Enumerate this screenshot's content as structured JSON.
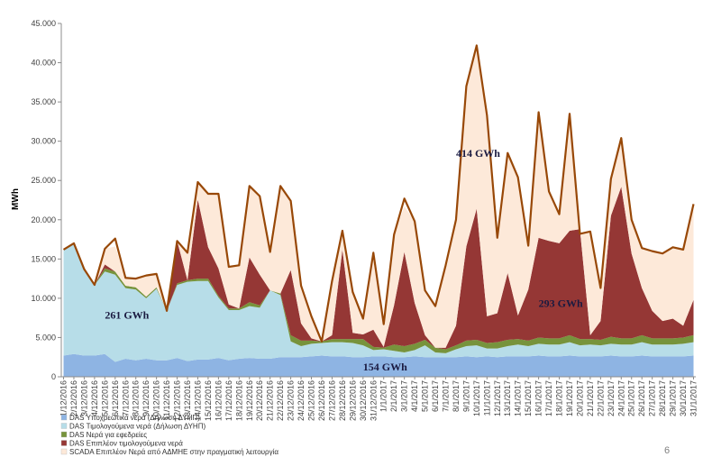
{
  "page_number": "6",
  "chart_data": {
    "type": "area",
    "stacked": true,
    "ylabel": "MWh",
    "ylim": [
      0,
      45000
    ],
    "yticks": [
      "0",
      "5.000",
      "10.000",
      "15.000",
      "20.000",
      "25.000",
      "30.000",
      "35.000",
      "40.000",
      "45.000"
    ],
    "grid": false,
    "legend_position": "bottom-left",
    "x": [
      "1/12/2016",
      "2/12/2016",
      "3/12/2016",
      "4/12/2016",
      "5/12/2016",
      "6/12/2016",
      "7/12/2016",
      "8/12/2016",
      "9/12/2016",
      "10/12/2016",
      "11/12/2016",
      "12/12/2016",
      "13/12/2016",
      "14/12/2016",
      "15/12/2016",
      "16/12/2016",
      "17/12/2016",
      "18/12/2016",
      "19/12/2016",
      "20/12/2016",
      "21/12/2016",
      "22/12/2016",
      "23/12/2016",
      "24/12/2016",
      "25/12/2016",
      "26/12/2016",
      "27/12/2016",
      "28/12/2016",
      "29/12/2016",
      "30/12/2016",
      "31/12/2016",
      "1/1/2017",
      "2/1/2017",
      "3/1/2017",
      "4/1/2017",
      "5/1/2017",
      "6/1/2017",
      "7/1/2017",
      "8/1/2017",
      "9/1/2017",
      "10/1/2017",
      "11/1/2017",
      "12/1/2017",
      "13/1/2017",
      "14/1/2017",
      "15/1/2017",
      "16/1/2017",
      "17/1/2017",
      "18/1/2017",
      "19/1/2017",
      "20/1/2017",
      "21/1/2017",
      "22/1/2017",
      "23/1/2017",
      "24/1/2017",
      "25/1/2017",
      "26/1/2017",
      "27/1/2017",
      "28/1/2017",
      "29/1/2017",
      "30/1/2017",
      "31/1/2017"
    ],
    "series": [
      {
        "name": "DAS Υποχρεωτικά νερά (Δήλωση ΔΥΗΠ)",
        "color": "#8eb4e3",
        "values": [
          2700,
          2900,
          2700,
          2700,
          2900,
          1900,
          2300,
          2100,
          2300,
          2100,
          2100,
          2400,
          2000,
          2200,
          2200,
          2400,
          2100,
          2300,
          2400,
          2300,
          2300,
          2500,
          2500,
          2500,
          2600,
          2700,
          2600,
          2600,
          2500,
          2500,
          2600,
          2600,
          2500,
          2500,
          2600,
          2500,
          2500,
          2500,
          2500,
          2600,
          2500,
          2600,
          2500,
          2600,
          2600,
          2600,
          2700,
          2600,
          2600,
          2700,
          2600,
          2600,
          2600,
          2700,
          2600,
          2600,
          2700,
          2600,
          2600,
          2600,
          2600,
          2700
        ]
      },
      {
        "name": "DAS Τιμολογούμενα νερά (Δήλωση ΔΥΗΠ)",
        "color": "#b7dde8",
        "values": [
          13500,
          14100,
          11000,
          9000,
          10500,
          11100,
          9000,
          9000,
          7700,
          9100,
          6300,
          9300,
          10100,
          10000,
          10000,
          7700,
          6400,
          6200,
          6600,
          6500,
          8700,
          7900,
          2000,
          1400,
          1600,
          1600,
          1800,
          1800,
          1800,
          1500,
          800,
          900,
          800,
          600,
          800,
          1500,
          600,
          500,
          1000,
          1300,
          1500,
          1000,
          1100,
          1300,
          1500,
          1300,
          1500,
          1500,
          1500,
          1700,
          1400,
          1500,
          1400,
          1500,
          1500,
          1500,
          1700,
          1500,
          1500,
          1500,
          1600,
          1700
        ]
      },
      {
        "name": "DAS Νερά για εφεδρείες",
        "color": "#77933c",
        "values": [
          0,
          0,
          0,
          0,
          400,
          400,
          300,
          300,
          200,
          200,
          0,
          200,
          200,
          300,
          300,
          200,
          200,
          200,
          500,
          300,
          0,
          200,
          800,
          700,
          400,
          200,
          400,
          400,
          500,
          800,
          400,
          200,
          800,
          800,
          800,
          700,
          600,
          500,
          500,
          700,
          700,
          700,
          800,
          800,
          700,
          700,
          800,
          800,
          800,
          900,
          800,
          700,
          700,
          900,
          800,
          800,
          900,
          800,
          800,
          800,
          800,
          900
        ]
      },
      {
        "name": "DAS Επιπλέον τιμολογούμενα νερά",
        "color": "#953735",
        "values": [
          0,
          0,
          0,
          0,
          500,
          0,
          0,
          0,
          0,
          0,
          0,
          5400,
          0,
          10100,
          4000,
          3500,
          500,
          0,
          5700,
          3900,
          0,
          0,
          8300,
          2200,
          300,
          0,
          500,
          11400,
          800,
          600,
          2200,
          100,
          5000,
          12000,
          5200,
          600,
          0,
          200,
          2500,
          12000,
          16700,
          3400,
          3700,
          8500,
          3000,
          6500,
          12700,
          12400,
          12100,
          13300,
          14000,
          500,
          2400,
          15400,
          19300,
          10800,
          6000,
          3500,
          2200,
          2500,
          1500,
          4500
        ]
      },
      {
        "name": "SCADA Επιπλέον Νερά από ΑΔΜΗΕ στην πραγματική λειτουργία",
        "color": "#fde9d9",
        "values": [
          0,
          0,
          0,
          0,
          2000,
          3200,
          1000,
          1100,
          2700,
          1700,
          0,
          0,
          3500,
          2200,
          6800,
          9500,
          4800,
          5500,
          9100,
          10000,
          4900,
          13700,
          8800,
          4800,
          2800,
          0,
          6900,
          1500,
          5200,
          2200,
          10000,
          2900,
          9000,
          5800,
          10400,
          5700,
          5300,
          10500,
          13500,
          20400,
          20800,
          25600,
          9600,
          15300,
          17600,
          5300,
          16000,
          6300,
          3700,
          14900,
          -600,
          13200,
          4200,
          4700,
          6200,
          4300,
          5100,
          7600,
          8500,
          9100,
          9700,
          12200
        ]
      }
    ],
    "total_line": {
      "color": "#984807",
      "values": [
        16200,
        17000,
        13700,
        11700,
        16300,
        17600,
        12600,
        12500,
        12900,
        13100,
        8400,
        17300,
        15800,
        24800,
        23300,
        23300,
        14000,
        14200,
        24300,
        23000,
        15900,
        24300,
        22400,
        11600,
        7700,
        4500,
        12200,
        18600,
        10800,
        7400,
        15800,
        6700,
        18100,
        22700,
        19800,
        11000,
        9000,
        14200,
        20000,
        37000,
        42200,
        33300,
        17700,
        28500,
        25400,
        16700,
        33700,
        23600,
        20700,
        33500,
        18200,
        18500,
        11300,
        25200,
        30400,
        20000,
        16400,
        16000,
        15700,
        16500,
        16200,
        22000
      ]
    },
    "annotations": [
      {
        "text": "261 GWh",
        "x": "5/12/2016",
        "y": 7400
      },
      {
        "text": "154 GWh",
        "x": "30/12/2016",
        "y": 800
      },
      {
        "text": "414 GWh",
        "x": "8/1/2017",
        "y": 28000
      },
      {
        "text": "293 GWh",
        "x": "16/1/2017",
        "y": 8900
      }
    ]
  }
}
